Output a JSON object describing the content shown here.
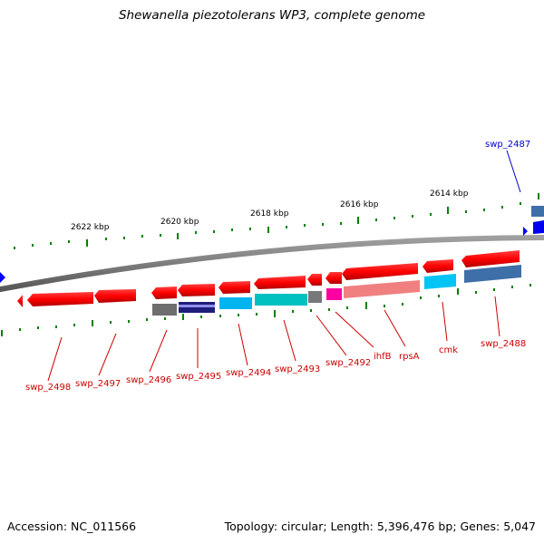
{
  "header": {
    "title": "Shewanella piezotolerans WP3, complete genome"
  },
  "footer": {
    "accession_label": "Accession:",
    "accession": "NC_011566",
    "topology_label": "Topology:",
    "topology": "circular",
    "length_label": "Length:",
    "length": "5,396,476 bp",
    "genes_label": "Genes:",
    "genes": "5,047"
  },
  "ruler": {
    "ticks": [
      "2622 kbp",
      "2620 kbp",
      "2618 kbp",
      "2616 kbp",
      "2614 kbp"
    ]
  },
  "genes": {
    "forward": [
      "swp_2487"
    ],
    "reverse": [
      "swp_2498",
      "swp_2497",
      "swp_2496",
      "swp_2495",
      "swp_2494",
      "swp_2493",
      "swp_2492",
      "ihfB",
      "rpsA",
      "cmk",
      "swp_2488"
    ]
  },
  "colors": {
    "cds": "#ff0000",
    "forward_label": "#0000cc",
    "reverse_label": "#cc0000",
    "backbone": "#808080",
    "tick": "#008000"
  }
}
